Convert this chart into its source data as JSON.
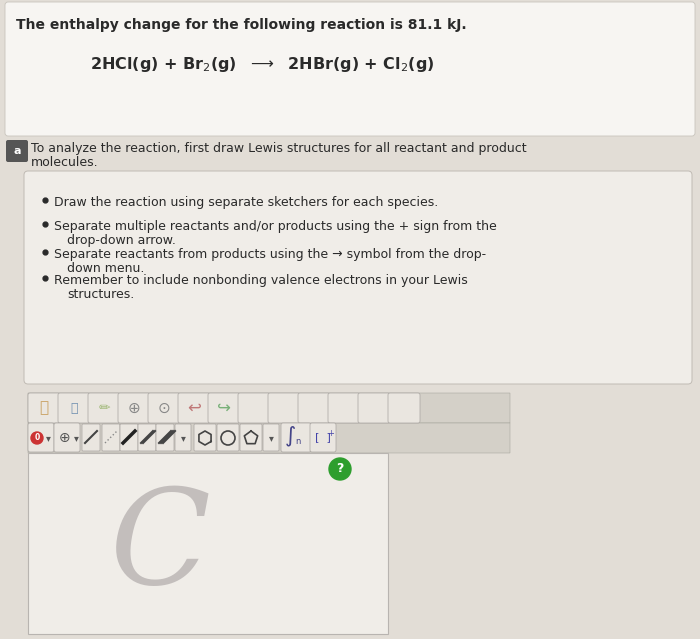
{
  "bg_color": "#e2ddd6",
  "top_box_color": "#f7f5f2",
  "top_box_edge": "#c8c4bc",
  "title_text": "The enthalpy change for the following reaction is 81.1 kJ.",
  "part_a_text_line1": "To analyze the reaction, first draw Lewis structures for all reactant and product",
  "part_a_text_line2": "molecules.",
  "bullet1": "Draw the reaction using separate sketchers for each species.",
  "bullet2a": "Separate multiple reactants and/or products using the + sign from the",
  "bullet2b": "drop-down arrow.",
  "bullet3a": "Separate reactants from products using the → symbol from the drop-",
  "bullet3b": "down menu.",
  "bullet4a": "Remember to include nonbonding valence electrons in your Lewis",
  "bullet4b": "structures.",
  "inner_box_color": "#f0ede8",
  "inner_box_edge": "#c0bbb4",
  "toolbar_bg": "#d4d0c8",
  "toolbar_btn_color": "#eae6e0",
  "toolbar_btn_edge": "#a8a4a0",
  "canvas_color": "#f0ede8",
  "canvas_edge": "#b8b4b0",
  "C_letter_color": "#b0aaaa",
  "green_btn_color": "#2e9e2e",
  "text_color": "#2a2a2a",
  "circle_a_color": "#555555"
}
